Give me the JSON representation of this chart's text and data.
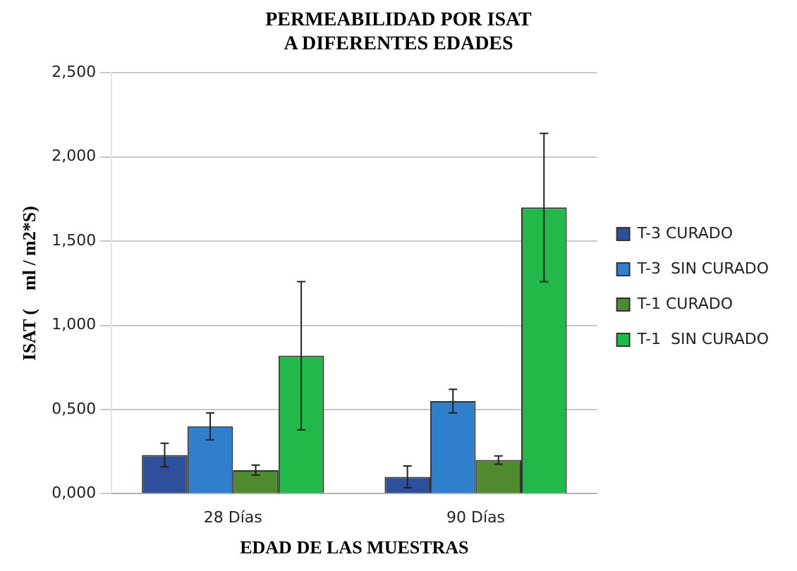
{
  "chart_data": {
    "type": "bar",
    "title": "PERMEABILIDAD POR ISAT\nA DIFERENTES EDADES",
    "xlabel": "EDAD DE LAS MUESTRAS",
    "ylabel": "ISAT (    ml / m2*S)",
    "categories": [
      "28 Días",
      "90 Días"
    ],
    "series": [
      {
        "name": "T-3 CURADO",
        "color": "#2e4f9c",
        "values": [
          0.23,
          0.1
        ],
        "errors": [
          0.07,
          0.065
        ]
      },
      {
        "name": "T-3  SIN CURADO",
        "color": "#2f7fcc",
        "values": [
          0.4,
          0.55
        ],
        "errors": [
          0.08,
          0.07
        ]
      },
      {
        "name": "T-1 CURADO",
        "color": "#4f8a2e",
        "values": [
          0.14,
          0.2
        ],
        "errors": [
          0.03,
          0.025
        ]
      },
      {
        "name": "T-1  SIN CURADO",
        "color": "#22b84a",
        "values": [
          0.82,
          1.7
        ],
        "errors": [
          0.44,
          0.44
        ]
      }
    ],
    "ylim": [
      0,
      2.5
    ],
    "yticks": [
      {
        "value": 0,
        "label": "0,000"
      },
      {
        "value": 0.5,
        "label": "0,500"
      },
      {
        "value": 1,
        "label": "1,000"
      },
      {
        "value": 1.5,
        "label": "1,500"
      },
      {
        "value": 2,
        "label": "2,000"
      },
      {
        "value": 2.5,
        "label": "2,500"
      }
    ],
    "grid": "y",
    "legend": "right"
  }
}
